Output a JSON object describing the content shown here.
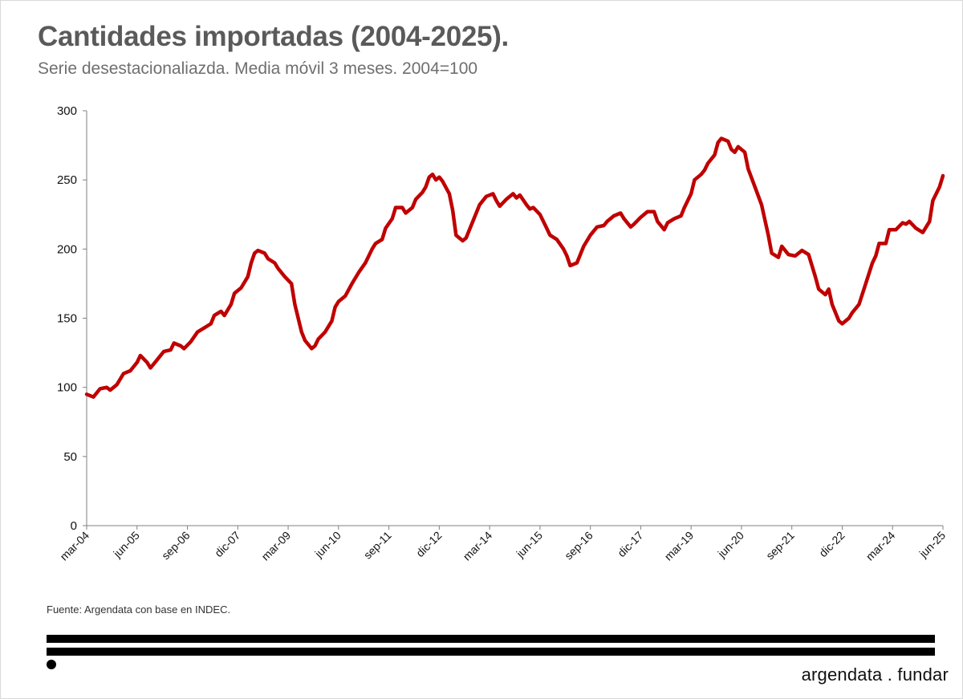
{
  "header": {
    "title": "Cantidades importadas (2004-2025).",
    "subtitle": "Serie desestacionaliazda. Media móvil 3 meses. 2004=100"
  },
  "footer": {
    "source": "Fuente: Argendata con base en INDEC.",
    "brand": "argendata . fundar"
  },
  "colors": {
    "line": "#c00000",
    "axis": "#808080"
  },
  "chart_data": {
    "type": "line",
    "x_start": "mar-04",
    "x_end": "jun-25",
    "ylim": [
      0,
      300
    ],
    "yticks": [
      0,
      50,
      100,
      150,
      200,
      250,
      300
    ],
    "xticks": [
      "mar-04",
      "jun-05",
      "sep-06",
      "dic-07",
      "mar-09",
      "jun-10",
      "sep-11",
      "dic-12",
      "mar-14",
      "jun-15",
      "sep-16",
      "dic-17",
      "mar-19",
      "jun-20",
      "sep-21",
      "dic-22",
      "mar-24",
      "jun-25"
    ],
    "grid": false,
    "series": [
      {
        "points": [
          [
            "mar-04",
            95
          ],
          [
            "may-04",
            93
          ],
          [
            "jul-04",
            99
          ],
          [
            "sep-04",
            100
          ],
          [
            "oct-04",
            98
          ],
          [
            "dic-04",
            102
          ],
          [
            "feb-05",
            110
          ],
          [
            "abr-05",
            112
          ],
          [
            "jun-05",
            118
          ],
          [
            "jul-05",
            123
          ],
          [
            "sep-05",
            118
          ],
          [
            "oct-05",
            114
          ],
          [
            "dic-05",
            120
          ],
          [
            "feb-06",
            126
          ],
          [
            "abr-06",
            127
          ],
          [
            "may-06",
            132
          ],
          [
            "jul-06",
            130
          ],
          [
            "ago-06",
            128
          ],
          [
            "oct-06",
            133
          ],
          [
            "dic-06",
            140
          ],
          [
            "feb-07",
            143
          ],
          [
            "abr-07",
            146
          ],
          [
            "may-07",
            152
          ],
          [
            "jul-07",
            155
          ],
          [
            "ago-07",
            152
          ],
          [
            "oct-07",
            160
          ],
          [
            "nov-07",
            168
          ],
          [
            "ene-08",
            172
          ],
          [
            "mar-08",
            180
          ],
          [
            "abr-08",
            190
          ],
          [
            "may-08",
            197
          ],
          [
            "jun-08",
            199
          ],
          [
            "ago-08",
            197
          ],
          [
            "sep-08",
            193
          ],
          [
            "nov-08",
            190
          ],
          [
            "dic-08",
            186
          ],
          [
            "feb-09",
            180
          ],
          [
            "abr-09",
            175
          ],
          [
            "may-09",
            160
          ],
          [
            "jul-09",
            140
          ],
          [
            "ago-09",
            134
          ],
          [
            "oct-09",
            128
          ],
          [
            "nov-09",
            130
          ],
          [
            "dic-09",
            135
          ],
          [
            "feb-10",
            140
          ],
          [
            "abr-10",
            148
          ],
          [
            "may-10",
            158
          ],
          [
            "jun-10",
            162
          ],
          [
            "ago-10",
            166
          ],
          [
            "oct-10",
            175
          ],
          [
            "dic-10",
            183
          ],
          [
            "feb-11",
            190
          ],
          [
            "abr-11",
            200
          ],
          [
            "may-11",
            204
          ],
          [
            "jul-11",
            207
          ],
          [
            "ago-11",
            215
          ],
          [
            "oct-11",
            222
          ],
          [
            "nov-11",
            230
          ],
          [
            "ene-12",
            230
          ],
          [
            "feb-12",
            226
          ],
          [
            "abr-12",
            230
          ],
          [
            "may-12",
            236
          ],
          [
            "jul-12",
            241
          ],
          [
            "ago-12",
            245
          ],
          [
            "sep-12",
            252
          ],
          [
            "oct-12",
            254
          ],
          [
            "nov-12",
            250
          ],
          [
            "dic-12",
            252
          ],
          [
            "ene-13",
            249
          ],
          [
            "mar-13",
            240
          ],
          [
            "abr-13",
            228
          ],
          [
            "may-13",
            210
          ],
          [
            "jul-13",
            206
          ],
          [
            "ago-13",
            208
          ],
          [
            "oct-13",
            220
          ],
          [
            "dic-13",
            232
          ],
          [
            "feb-14",
            238
          ],
          [
            "abr-14",
            240
          ],
          [
            "may-14",
            235
          ],
          [
            "jun-14",
            231
          ],
          [
            "ago-14",
            236
          ],
          [
            "oct-14",
            240
          ],
          [
            "nov-14",
            237
          ],
          [
            "dic-14",
            239
          ],
          [
            "feb-15",
            232
          ],
          [
            "mar-15",
            229
          ],
          [
            "abr-15",
            230
          ],
          [
            "jun-15",
            225
          ],
          [
            "ago-15",
            215
          ],
          [
            "sep-15",
            210
          ],
          [
            "nov-15",
            207
          ],
          [
            "ene-16",
            200
          ],
          [
            "feb-16",
            195
          ],
          [
            "mar-16",
            188
          ],
          [
            "may-16",
            190
          ],
          [
            "jul-16",
            202
          ],
          [
            "sep-16",
            210
          ],
          [
            "nov-16",
            216
          ],
          [
            "ene-17",
            217
          ],
          [
            "feb-17",
            220
          ],
          [
            "abr-17",
            224
          ],
          [
            "jun-17",
            226
          ],
          [
            "jul-17",
            222
          ],
          [
            "sep-17",
            216
          ],
          [
            "oct-17",
            218
          ],
          [
            "dic-17",
            223
          ],
          [
            "feb-18",
            227
          ],
          [
            "abr-18",
            227
          ],
          [
            "may-18",
            220
          ],
          [
            "jul-18",
            214
          ],
          [
            "ago-18",
            219
          ],
          [
            "oct-18",
            222
          ],
          [
            "dic-18",
            224
          ],
          [
            "ene-19",
            230
          ],
          [
            "mar-19",
            240
          ],
          [
            "abr-19",
            250
          ],
          [
            "jun-19",
            254
          ],
          [
            "jul-19",
            257
          ],
          [
            "ago-19",
            262
          ],
          [
            "oct-19",
            268
          ],
          [
            "nov-19",
            277
          ],
          [
            "dic-19",
            280
          ],
          [
            "feb-20",
            278
          ],
          [
            "mar-20",
            272
          ],
          [
            "abr-20",
            270
          ],
          [
            "may-20",
            274
          ],
          [
            "jul-20",
            270
          ],
          [
            "ago-20",
            258
          ],
          [
            "oct-20",
            245
          ],
          [
            "dic-20",
            232
          ],
          [
            "feb-21",
            210
          ],
          [
            "mar-21",
            197
          ],
          [
            "may-21",
            194
          ],
          [
            "jun-21",
            202
          ],
          [
            "ago-21",
            196
          ],
          [
            "oct-21",
            195
          ],
          [
            "dic-21",
            199
          ],
          [
            "feb-22",
            196
          ],
          [
            "mar-22",
            188
          ],
          [
            "abr-22",
            180
          ],
          [
            "may-22",
            171
          ],
          [
            "jul-22",
            167
          ],
          [
            "ago-22",
            171
          ],
          [
            "sep-22",
            160
          ],
          [
            "nov-22",
            148
          ],
          [
            "dic-22",
            146
          ],
          [
            "feb-23",
            150
          ],
          [
            "mar-23",
            154
          ],
          [
            "may-23",
            160
          ],
          [
            "jul-23",
            175
          ],
          [
            "sep-23",
            190
          ],
          [
            "oct-23",
            195
          ],
          [
            "nov-23",
            204
          ],
          [
            "ene-24",
            204
          ],
          [
            "feb-24",
            214
          ],
          [
            "abr-24",
            214
          ],
          [
            "jun-24",
            219
          ],
          [
            "jul-24",
            218
          ],
          [
            "ago-24",
            220
          ],
          [
            "oct-24",
            215
          ],
          [
            "dic-24",
            212
          ],
          [
            "feb-25",
            220
          ],
          [
            "mar-25",
            235
          ],
          [
            "may-25",
            245
          ],
          [
            "jun-25",
            253
          ]
        ]
      }
    ]
  }
}
